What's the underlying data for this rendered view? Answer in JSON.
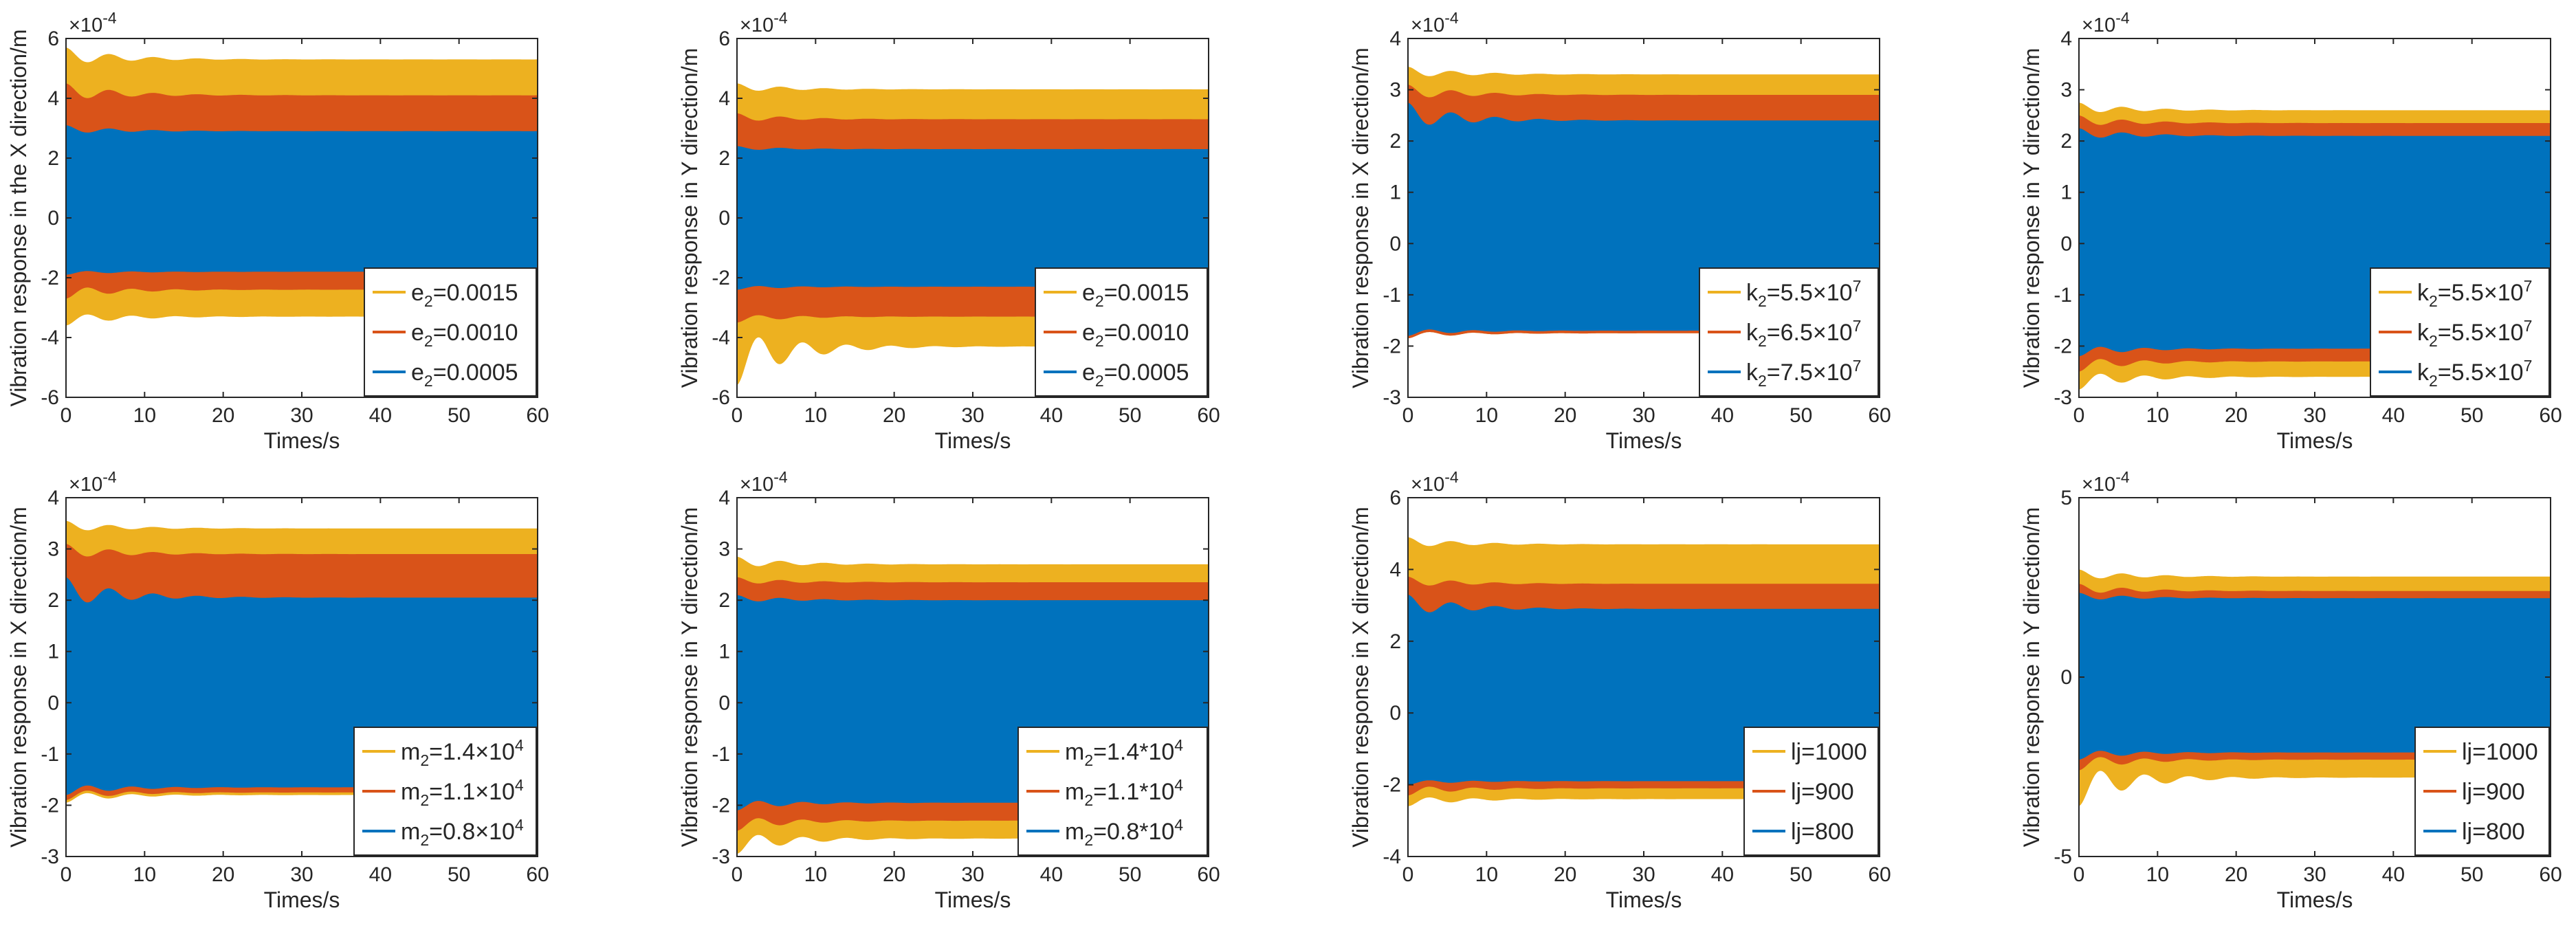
{
  "chart_data": [
    {
      "type": "area",
      "xlabel": "Times/s",
      "ylabel": "Vibration response in the X direction/m",
      "xlim": [
        0,
        60
      ],
      "xticks": [
        "0",
        "10",
        "20",
        "30",
        "40",
        "50",
        "60"
      ],
      "ylim": [
        -6,
        6
      ],
      "yticks": [
        "-6",
        "-4",
        "-2",
        "0",
        "2",
        "4",
        "6"
      ],
      "exponent": "-4",
      "legend_position": "bottom-right",
      "series": [
        {
          "name": "e2=0.0015",
          "legend_parts": [
            "e",
            "2",
            "=0.0015"
          ],
          "color": "#EDB120",
          "upper_steady": 5.3,
          "lower_steady": -3.3,
          "upper_peak": 5.7,
          "lower_peak": -3.6
        },
        {
          "name": "e2=0.0010",
          "legend_parts": [
            "e",
            "2",
            "=0.0010"
          ],
          "color": "#D95319",
          "upper_steady": 4.1,
          "lower_steady": -2.4,
          "upper_peak": 4.5,
          "lower_peak": -2.7
        },
        {
          "name": "e2=0.0005",
          "legend_parts": [
            "e",
            "2",
            "=0.0005"
          ],
          "color": "#0072BD",
          "upper_steady": 2.9,
          "lower_steady": -1.8,
          "upper_peak": 3.1,
          "lower_peak": -1.9
        }
      ]
    },
    {
      "type": "area",
      "xlabel": "Times/s",
      "ylabel": "Vibration response in Y direction/m",
      "xlim": [
        0,
        60
      ],
      "xticks": [
        "0",
        "10",
        "20",
        "30",
        "40",
        "50",
        "60"
      ],
      "ylim": [
        -6,
        6
      ],
      "yticks": [
        "-6",
        "-4",
        "-2",
        "0",
        "2",
        "4",
        "6"
      ],
      "exponent": "-4",
      "legend_position": "bottom-right",
      "series": [
        {
          "name": "e2=0.0015",
          "legend_parts": [
            "e",
            "2",
            "=0.0015"
          ],
          "color": "#EDB120",
          "upper_steady": 4.3,
          "lower_steady": -4.3,
          "upper_peak": 4.5,
          "lower_peak": -5.6
        },
        {
          "name": "e2=0.0010",
          "legend_parts": [
            "e",
            "2",
            "=0.0010"
          ],
          "color": "#D95319",
          "upper_steady": 3.3,
          "lower_steady": -3.3,
          "upper_peak": 3.5,
          "lower_peak": -3.5
        },
        {
          "name": "e2=0.0005",
          "legend_parts": [
            "e",
            "2",
            "=0.0005"
          ],
          "color": "#0072BD",
          "upper_steady": 2.3,
          "lower_steady": -2.3,
          "upper_peak": 2.4,
          "lower_peak": -2.4
        }
      ]
    },
    {
      "type": "area",
      "xlabel": "Times/s",
      "ylabel": "Vibration response in X direction/m",
      "xlim": [
        0,
        60
      ],
      "xticks": [
        "0",
        "10",
        "20",
        "30",
        "40",
        "50",
        "60"
      ],
      "ylim": [
        -3,
        4
      ],
      "yticks": [
        "-3",
        "-2",
        "-1",
        "0",
        "1",
        "2",
        "3",
        "4"
      ],
      "exponent": "-4",
      "legend_position": "bottom-right",
      "series": [
        {
          "name": "k2=5.5×10^7",
          "legend_parts": [
            "k",
            "2",
            "=5.5×10",
            "7"
          ],
          "color": "#EDB120",
          "upper_steady": 3.3,
          "lower_steady": -1.75,
          "upper_peak": 3.45,
          "lower_peak": -1.85
        },
        {
          "name": "k2=6.5×10^7",
          "legend_parts": [
            "k",
            "2",
            "=6.5×10",
            "7"
          ],
          "color": "#D95319",
          "upper_steady": 2.9,
          "lower_steady": -1.75,
          "upper_peak": 3.1,
          "lower_peak": -1.85
        },
        {
          "name": "k2=7.5×10^7",
          "legend_parts": [
            "k",
            "2",
            "=7.5×10",
            "7"
          ],
          "color": "#0072BD",
          "upper_steady": 2.4,
          "lower_steady": -1.7,
          "upper_peak": 2.75,
          "lower_peak": -1.8
        }
      ]
    },
    {
      "type": "area",
      "xlabel": "Times/s",
      "ylabel": "Vibration response in Y direction/m",
      "xlim": [
        0,
        60
      ],
      "xticks": [
        "0",
        "10",
        "20",
        "30",
        "40",
        "50",
        "60"
      ],
      "ylim": [
        -3,
        4
      ],
      "yticks": [
        "-3",
        "-2",
        "-1",
        "0",
        "1",
        "2",
        "3",
        "4"
      ],
      "exponent": "-4",
      "legend_position": "bottom-right",
      "series": [
        {
          "name": "k2=5.5×10^7",
          "legend_parts": [
            "k",
            "2",
            "=5.5×10",
            "7"
          ],
          "color": "#EDB120",
          "upper_steady": 2.6,
          "lower_steady": -2.6,
          "upper_peak": 2.75,
          "lower_peak": -2.85
        },
        {
          "name": "k2=5.5×10^7",
          "legend_parts": [
            "k",
            "2",
            "=5.5×10",
            "7"
          ],
          "color": "#D95319",
          "upper_steady": 2.35,
          "lower_steady": -2.3,
          "upper_peak": 2.5,
          "lower_peak": -2.5
        },
        {
          "name": "k2=5.5×10^7",
          "legend_parts": [
            "k",
            "2",
            "=5.5×10",
            "7"
          ],
          "color": "#0072BD",
          "upper_steady": 2.1,
          "lower_steady": -2.05,
          "upper_peak": 2.25,
          "lower_peak": -2.2
        }
      ]
    },
    {
      "type": "area",
      "xlabel": "Times/s",
      "ylabel": "Vibration response in X direction/m",
      "xlim": [
        0,
        60
      ],
      "xticks": [
        "0",
        "10",
        "20",
        "30",
        "40",
        "50",
        "60"
      ],
      "ylim": [
        -3,
        4
      ],
      "yticks": [
        "-3",
        "-2",
        "-1",
        "0",
        "1",
        "2",
        "3",
        "4"
      ],
      "exponent": "-4",
      "legend_position": "bottom-right",
      "series": [
        {
          "name": "m2=1.4×10^4",
          "legend_parts": [
            "m",
            "2",
            "=1.4×10",
            "4"
          ],
          "color": "#EDB120",
          "upper_steady": 3.4,
          "lower_steady": -1.8,
          "upper_peak": 3.55,
          "lower_peak": -1.95
        },
        {
          "name": "m2=1.1×10^4",
          "legend_parts": [
            "m",
            "2",
            "=1.1×10",
            "4"
          ],
          "color": "#D95319",
          "upper_steady": 2.9,
          "lower_steady": -1.75,
          "upper_peak": 3.1,
          "lower_peak": -1.9
        },
        {
          "name": "m2=0.8×10^4",
          "legend_parts": [
            "m",
            "2",
            "=0.8×10",
            "4"
          ],
          "color": "#0072BD",
          "upper_steady": 2.05,
          "lower_steady": -1.65,
          "upper_peak": 2.45,
          "lower_peak": -1.8
        }
      ]
    },
    {
      "type": "area",
      "xlabel": "Times/s",
      "ylabel": "Vibration response in Y direction/m",
      "xlim": [
        0,
        60
      ],
      "xticks": [
        "0",
        "10",
        "20",
        "30",
        "40",
        "50",
        "60"
      ],
      "ylim": [
        -3,
        4
      ],
      "yticks": [
        "-3",
        "-2",
        "-1",
        "0",
        "1",
        "2",
        "3",
        "4"
      ],
      "exponent": "-4",
      "legend_position": "bottom-right",
      "series": [
        {
          "name": "m2=1.4*10^4",
          "legend_parts": [
            "m",
            "2",
            "=1.4*10",
            "4"
          ],
          "color": "#EDB120",
          "upper_steady": 2.7,
          "lower_steady": -2.65,
          "upper_peak": 2.85,
          "lower_peak": -2.95
        },
        {
          "name": "m2=1.1*10^4",
          "legend_parts": [
            "m",
            "2",
            "=1.1*10",
            "4"
          ],
          "color": "#D95319",
          "upper_steady": 2.35,
          "lower_steady": -2.3,
          "upper_peak": 2.45,
          "lower_peak": -2.5
        },
        {
          "name": "m2=0.8*10^4",
          "legend_parts": [
            "m",
            "2",
            "=0.8*10",
            "4"
          ],
          "color": "#0072BD",
          "upper_steady": 2.0,
          "lower_steady": -1.95,
          "upper_peak": 2.1,
          "lower_peak": -2.1
        }
      ]
    },
    {
      "type": "area",
      "xlabel": "Times/s",
      "ylabel": "Vibration response in X direction/m",
      "xlim": [
        0,
        60
      ],
      "xticks": [
        "0",
        "10",
        "20",
        "30",
        "40",
        "50",
        "60"
      ],
      "ylim": [
        -4,
        6
      ],
      "yticks": [
        "-4",
        "-2",
        "0",
        "2",
        "4",
        "6"
      ],
      "exponent": "-4",
      "legend_position": "bottom-right",
      "series": [
        {
          "name": "lj=1000",
          "legend_parts": [
            "lj=1000"
          ],
          "color": "#EDB120",
          "upper_steady": 4.7,
          "lower_steady": -2.4,
          "upper_peak": 4.9,
          "lower_peak": -2.6
        },
        {
          "name": "lj=900",
          "legend_parts": [
            "lj=900"
          ],
          "color": "#D95319",
          "upper_steady": 3.6,
          "lower_steady": -2.1,
          "upper_peak": 3.8,
          "lower_peak": -2.3
        },
        {
          "name": "lj=800",
          "legend_parts": [
            "lj=800"
          ],
          "color": "#0072BD",
          "upper_steady": 2.9,
          "lower_steady": -1.9,
          "upper_peak": 3.3,
          "lower_peak": -2.0
        }
      ]
    },
    {
      "type": "area",
      "xlabel": "Times/s",
      "ylabel": "Vibration response in Y direction/m",
      "xlim": [
        0,
        60
      ],
      "xticks": [
        "0",
        "10",
        "20",
        "30",
        "40",
        "50",
        "60"
      ],
      "ylim": [
        -5,
        5
      ],
      "yticks": [
        "-5",
        "0",
        "5"
      ],
      "exponent": "-4",
      "legend_position": "bottom-right",
      "series": [
        {
          "name": "lj=1000",
          "legend_parts": [
            "lj=1000"
          ],
          "color": "#EDB120",
          "upper_steady": 2.8,
          "lower_steady": -2.8,
          "upper_peak": 3.0,
          "lower_peak": -3.6
        },
        {
          "name": "lj=900",
          "legend_parts": [
            "lj=900"
          ],
          "color": "#D95319",
          "upper_steady": 2.4,
          "lower_steady": -2.3,
          "upper_peak": 2.6,
          "lower_peak": -2.6
        },
        {
          "name": "lj=800",
          "legend_parts": [
            "lj=800"
          ],
          "color": "#0072BD",
          "upper_steady": 2.2,
          "lower_steady": -2.1,
          "upper_peak": 2.35,
          "lower_peak": -2.3
        }
      ]
    }
  ]
}
